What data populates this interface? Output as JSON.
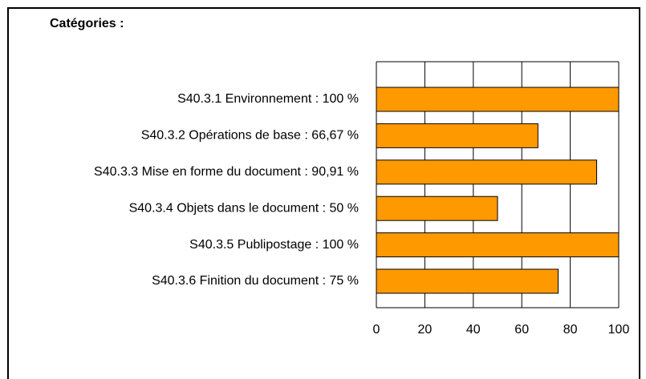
{
  "chart_data": {
    "type": "bar",
    "title": "Catégories :",
    "categories": [
      "S40.3.1 Environnement : 100 %",
      "S40.3.2 Opérations de base : 66,67 %",
      "S40.3.3 Mise en forme du document : 90,91 %",
      "S40.3.4 Objets dans le document : 50 %",
      "S40.3.5 Publipostage : 100 %",
      "S40.3.6 Finition du document : 75 %"
    ],
    "values": [
      100,
      66.67,
      90.91,
      50,
      100,
      75
    ],
    "color": "#ff9900",
    "xlim": [
      0,
      100
    ],
    "xticks": [
      0,
      20,
      40,
      60,
      80,
      100
    ],
    "grid": true
  }
}
